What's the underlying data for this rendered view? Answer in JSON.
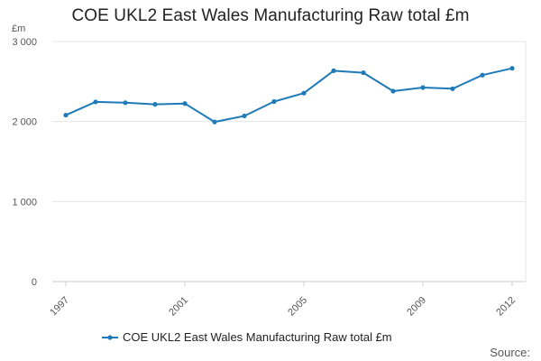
{
  "chart_data": {
    "type": "line",
    "title": "COE UKL2 East Wales Manufacturing Raw total £m",
    "ylabel": "£m",
    "xlabel": "",
    "x": [
      1997,
      1998,
      1999,
      2000,
      2001,
      2002,
      2003,
      2004,
      2005,
      2006,
      2007,
      2008,
      2009,
      2010,
      2011,
      2012
    ],
    "xtick_values": [
      1997,
      2001,
      2005,
      2009,
      2012
    ],
    "xtick_labels": [
      "1997",
      "2001",
      "2005",
      "2009",
      "2012"
    ],
    "ylim": [
      0,
      3000
    ],
    "ytick_values": [
      0,
      1000,
      2000,
      3000
    ],
    "ytick_labels": [
      "0",
      "1 000",
      "2 000",
      "3 000"
    ],
    "series": [
      {
        "name": "COE UKL2 East Wales Manufacturing Raw total £m",
        "color": "#1f7ab8",
        "values": [
          2080,
          2245,
          2235,
          2215,
          2225,
          1995,
          2070,
          2250,
          2355,
          2635,
          2610,
          2380,
          2425,
          2410,
          2580,
          2665
        ]
      }
    ],
    "grid": true,
    "legend_position": "bottom",
    "source_label": "Source:"
  }
}
